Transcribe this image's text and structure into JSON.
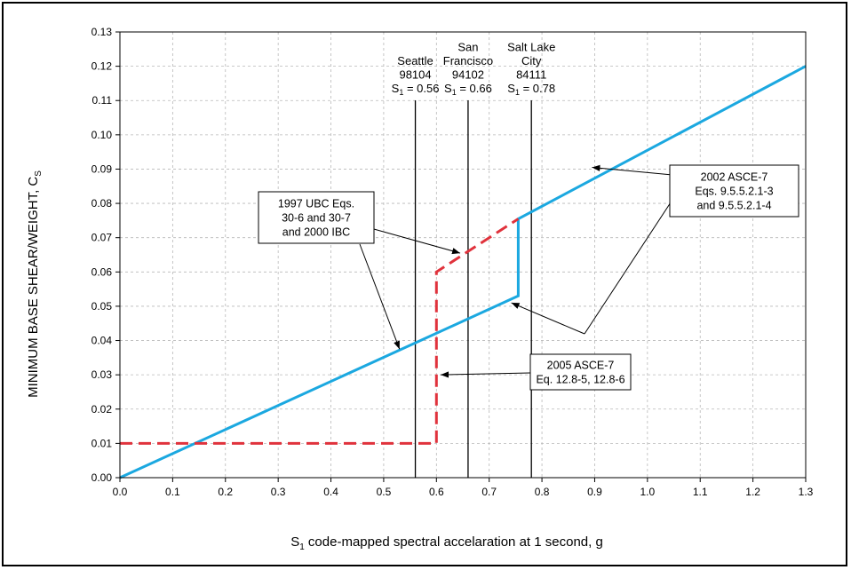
{
  "chart_data": {
    "type": "line",
    "title": "",
    "xlabel": {
      "main": "S",
      "sub": "1",
      "rest": " code-mapped spectral accelaration at 1 second, g"
    },
    "ylabel": {
      "main": "MINIMUM BASE SHEAR/WEIGHT, C",
      "sub": "S"
    },
    "xlim": [
      0,
      1.3
    ],
    "ylim": [
      0,
      0.13
    ],
    "grid": true,
    "x_ticks": [
      "0.0",
      "0.1",
      "0.2",
      "0.3",
      "0.4",
      "0.5",
      "0.6",
      "0.7",
      "0.8",
      "0.9",
      "1.0",
      "1.1",
      "1.2",
      "1.3"
    ],
    "y_ticks": [
      "0.00",
      "0.01",
      "0.02",
      "0.03",
      "0.04",
      "0.05",
      "0.06",
      "0.07",
      "0.08",
      "0.09",
      "0.10",
      "0.11",
      "0.12",
      "0.13"
    ],
    "series": [
      {
        "style": "solid",
        "color": "#1ba8e0",
        "points": [
          [
            0.0,
            0.0
          ],
          [
            0.755,
            0.053
          ],
          [
            0.755,
            0.0755
          ],
          [
            1.3,
            0.12
          ]
        ]
      },
      {
        "style": "dashed",
        "color": "#e0323c",
        "points": [
          [
            0.0,
            0.01
          ],
          [
            0.6,
            0.01
          ],
          [
            0.6,
            0.06
          ],
          [
            0.615,
            0.0615
          ],
          [
            0.755,
            0.0755
          ]
        ]
      }
    ],
    "reference_lines": [
      {
        "x": 0.56,
        "lines": [
          "Seattle",
          "98104",
          "S1 = 0.56"
        ]
      },
      {
        "x": 0.66,
        "lines": [
          "San",
          "Francisco",
          "94102",
          "S1 = 0.66"
        ]
      },
      {
        "x": 0.78,
        "lines": [
          "Salt Lake",
          "City",
          "84111",
          "S1 = 0.78"
        ]
      }
    ],
    "annotations": [
      {
        "id": "ubc",
        "lines": [
          "1997 UBC Eqs.",
          "30-6 and 30-7",
          "and 2000 IBC"
        ],
        "arrows_to": [
          [
            0.645,
            0.0655
          ],
          [
            0.53,
            0.0375
          ]
        ]
      },
      {
        "id": "asce2002",
        "lines": [
          "2002 ASCE-7",
          "Eqs. 9.5.5.2.1-3",
          "and 9.5.5.2.1-4"
        ],
        "arrows_to": [
          [
            0.895,
            0.0905
          ],
          [
            0.742,
            0.051
          ]
        ]
      },
      {
        "id": "asce2005",
        "lines": [
          "2005 ASCE-7",
          "Eq. 12.8-5, 12.8-6"
        ],
        "arrows_to": [
          [
            0.608,
            0.03
          ]
        ]
      }
    ]
  }
}
